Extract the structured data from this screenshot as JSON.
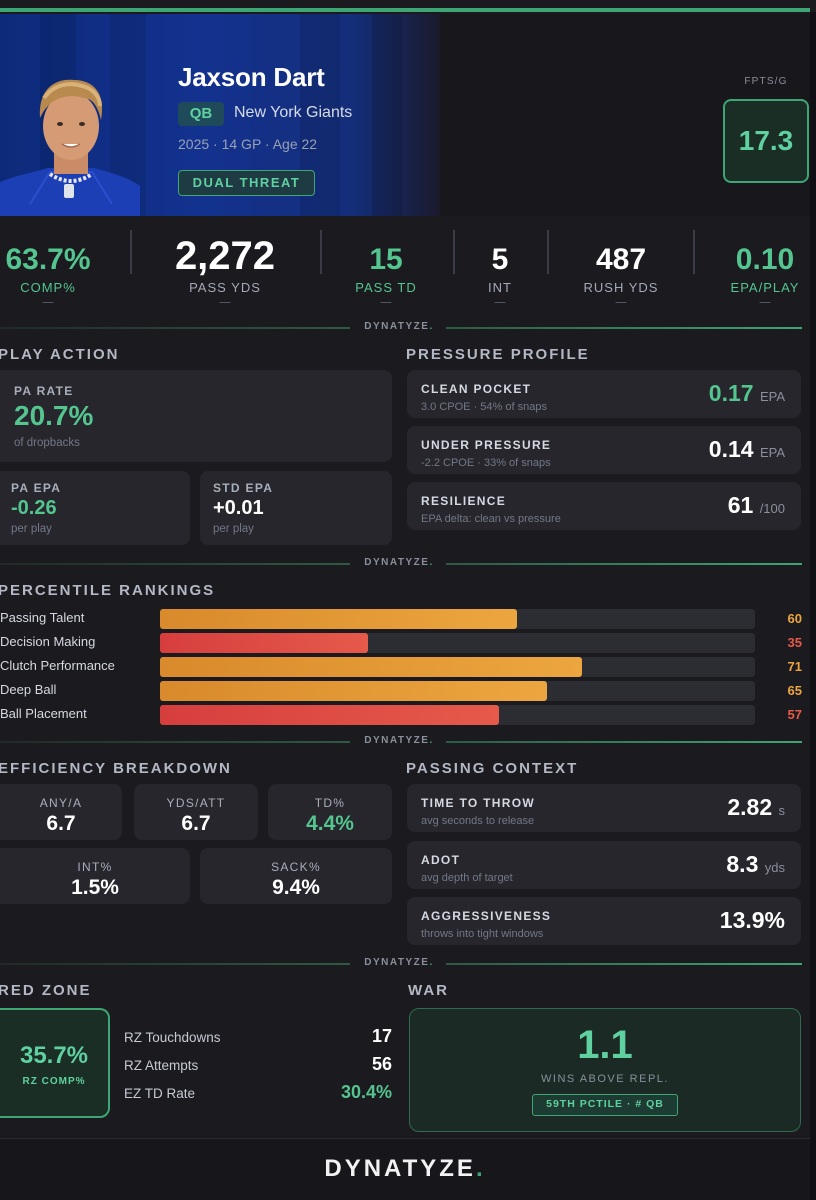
{
  "colors": {
    "accent": "#3ea574",
    "green_text": "#54c58f",
    "orange": "#e8a03a",
    "red": "#e04a4a",
    "background": "#1a1a1f",
    "hero_blue": "#13328f"
  },
  "player": {
    "name": "Jaxson Dart",
    "position": "QB",
    "team": "New York Giants",
    "meta": "2025 · 14 GP · Age 22",
    "archetype": "DUAL THREAT",
    "fpts_label": "FPTS/G",
    "fpts_value": "17.3"
  },
  "top_stats": [
    {
      "value": "63.7%",
      "label": "COMP%",
      "dash": "—"
    },
    {
      "value": "2,272",
      "label": "PASS YDS",
      "dash": "—"
    },
    {
      "value": "15",
      "label": "PASS TD",
      "dash": "—"
    },
    {
      "value": "5",
      "label": "INT",
      "dash": "—"
    },
    {
      "value": "487",
      "label": "RUSH YDS",
      "dash": "—"
    },
    {
      "value": "0.10",
      "label": "EPA/PLAY",
      "dash": "—"
    }
  ],
  "brand": {
    "name": "DYNATYZE",
    "dot": "."
  },
  "play_action": {
    "title": "PLAY ACTION",
    "pa_rate": {
      "label": "PA RATE",
      "value": "20.7%",
      "sub": "of dropbacks"
    },
    "pa_epa": {
      "label": "PA EPA",
      "value": "-0.26",
      "sub": "per play"
    },
    "std_epa": {
      "label": "STD EPA",
      "value": "+0.01",
      "sub": "per play"
    }
  },
  "pressure_profile": {
    "title": "PRESSURE PROFILE",
    "items": [
      {
        "label": "CLEAN POCKET",
        "sub": "3.0 CPOE · 54% of snaps",
        "value": "0.17",
        "unit": "EPA"
      },
      {
        "label": "UNDER PRESSURE",
        "sub": "-2.2 CPOE · 33% of snaps",
        "value": "0.14",
        "unit": "EPA"
      },
      {
        "label": "RESILIENCE",
        "sub": "EPA delta: clean vs pressure",
        "value": "61",
        "unit": "/100"
      }
    ]
  },
  "percentiles": {
    "title": "PERCENTILE RANKINGS",
    "rows": [
      {
        "name": "Passing Talent",
        "value": 60,
        "display": "60",
        "tier": "orange"
      },
      {
        "name": "Decision Making",
        "value": 35,
        "display": "35",
        "tier": "red"
      },
      {
        "name": "Clutch Performance",
        "value": 71,
        "display": "71",
        "tier": "orange"
      },
      {
        "name": "Deep Ball",
        "value": 65,
        "display": "65",
        "tier": "orange"
      },
      {
        "name": "Ball Placement",
        "value": 57,
        "display": "57",
        "tier": "red"
      }
    ]
  },
  "efficiency": {
    "title": "EFFICIENCY BREAKDOWN",
    "row1": [
      {
        "label": "ANY/A",
        "value": "6.7"
      },
      {
        "label": "YDS/ATT",
        "value": "6.7"
      },
      {
        "label": "TD%",
        "value": "4.4%"
      }
    ],
    "row2": [
      {
        "label": "INT%",
        "value": "1.5%"
      },
      {
        "label": "SACK%",
        "value": "9.4%"
      }
    ]
  },
  "passing_context": {
    "title": "PASSING CONTEXT",
    "items": [
      {
        "label": "TIME TO THROW",
        "sub": "avg seconds to release",
        "value": "2.82",
        "unit": "s"
      },
      {
        "label": "ADOT",
        "sub": "avg depth of target",
        "value": "8.3",
        "unit": "yds"
      },
      {
        "label": "AGGRESSIVENESS",
        "sub": "throws into tight windows",
        "value": "13.9%",
        "unit": ""
      }
    ]
  },
  "red_zone": {
    "title": "RED ZONE",
    "comp_value": "35.7%",
    "comp_label": "RZ COMP%",
    "rows": [
      {
        "label": "RZ Touchdowns",
        "value": "17"
      },
      {
        "label": "RZ Attempts",
        "value": "56"
      },
      {
        "label": "EZ TD Rate",
        "value": "30.4%"
      }
    ]
  },
  "war": {
    "title": "WAR",
    "value": "1.1",
    "label": "WINS ABOVE REPL.",
    "pill": "59TH PCTILE · # QB"
  }
}
